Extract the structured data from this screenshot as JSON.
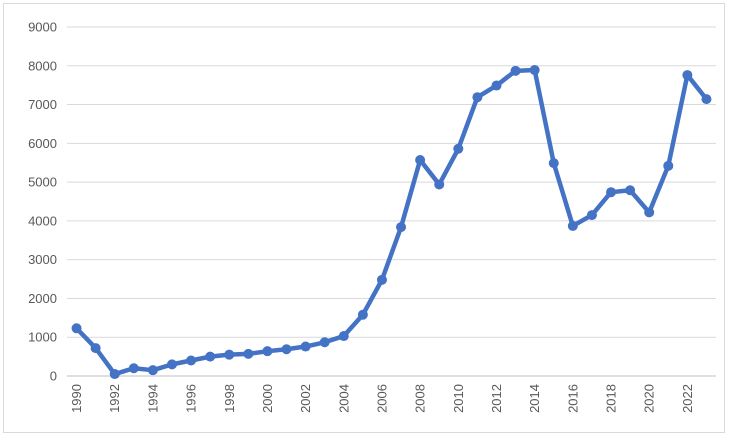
{
  "chart_data": {
    "type": "line",
    "title": "",
    "xlabel": "",
    "ylabel": "",
    "x": [
      1990,
      1991,
      1992,
      1993,
      1994,
      1995,
      1996,
      1997,
      1998,
      1999,
      2000,
      2001,
      2002,
      2003,
      2004,
      2005,
      2006,
      2007,
      2008,
      2009,
      2010,
      2011,
      2012,
      2013,
      2014,
      2015,
      2016,
      2017,
      2018,
      2019,
      2020,
      2021,
      2022,
      2023
    ],
    "x_tick_labels": [
      "1990",
      "1992",
      "1994",
      "1996",
      "1998",
      "2000",
      "2002",
      "2004",
      "2006",
      "2008",
      "2010",
      "2012",
      "2014",
      "2016",
      "2018",
      "2020",
      "2022"
    ],
    "series": [
      {
        "color": "#4472c4",
        "values": [
          1230,
          720,
          50,
          200,
          150,
          300,
          400,
          500,
          550,
          570,
          640,
          690,
          760,
          870,
          1030,
          1580,
          2480,
          3840,
          5570,
          4940,
          5860,
          7190,
          7490,
          7870,
          7890,
          5490,
          3870,
          4150,
          4740,
          4790,
          4220,
          5420,
          7760,
          7140
        ]
      }
    ],
    "ylim": [
      0,
      9000
    ],
    "y_ticks": [
      0,
      1000,
      2000,
      3000,
      4000,
      5000,
      6000,
      7000,
      8000,
      9000
    ],
    "grid": true,
    "legend": "none"
  }
}
